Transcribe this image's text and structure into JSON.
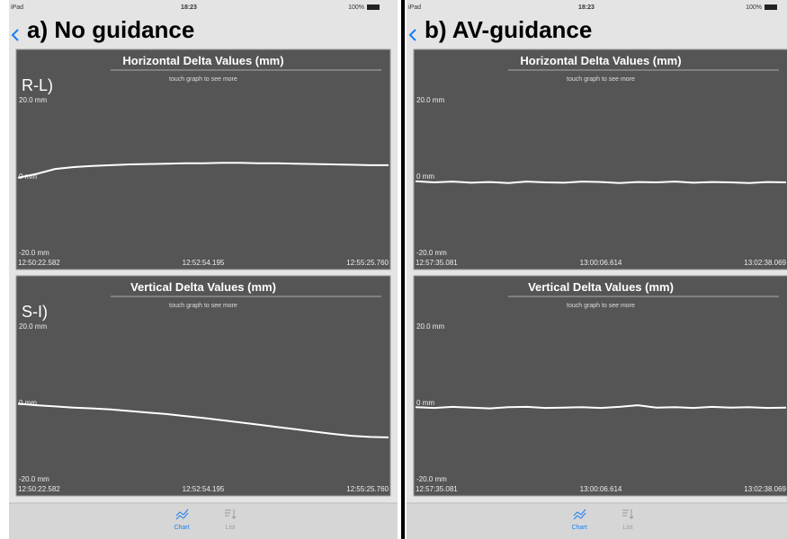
{
  "screens": [
    {
      "status": {
        "device": "iPad",
        "time": "18:23",
        "battery": "100%"
      },
      "heading": "a) No guidance",
      "tabs": [
        "Chart",
        "List"
      ]
    },
    {
      "status": {
        "device": "iPad",
        "time": "18:23",
        "battery": "100%"
      },
      "heading": "b) AV-guidance",
      "tabs": [
        "Chart",
        "List"
      ]
    }
  ],
  "chart_data": [
    {
      "type": "line",
      "title": "Horizontal Delta Values (mm)",
      "subtitle": "touch graph to see more",
      "annotation": "R-L)",
      "categories": [
        "12:50:22.582",
        null,
        null,
        null,
        null,
        null,
        null,
        null,
        null,
        null,
        "12:52:54.195",
        null,
        null,
        null,
        null,
        null,
        null,
        null,
        null,
        null,
        "12:55:25.760"
      ],
      "series": [
        {
          "color": "#ffffff",
          "values": [
            0.5,
            1.5,
            2.8,
            3.3,
            3.6,
            3.8,
            4.0,
            4.1,
            4.2,
            4.3,
            4.3,
            4.4,
            4.4,
            4.3,
            4.3,
            4.2,
            4.1,
            4.0,
            3.9,
            3.8,
            3.8
          ]
        }
      ],
      "ylim": [
        -20,
        20
      ],
      "yticks": [
        {
          "value": 20,
          "label": "20.0 mm"
        },
        {
          "value": 0,
          "label": "0 mm"
        },
        {
          "value": -20,
          "label": "-20.0 mm"
        }
      ]
    },
    {
      "type": "line",
      "title": "Vertical Delta Values (mm)",
      "subtitle": "touch graph to see more",
      "annotation": "S-I)",
      "categories": [
        "12:50:22.582",
        null,
        null,
        null,
        null,
        null,
        null,
        null,
        null,
        null,
        "12:52:54.195",
        null,
        null,
        null,
        null,
        null,
        null,
        null,
        null,
        null,
        "12:55:25.760"
      ],
      "series": [
        {
          "color": "#ffffff",
          "values": [
            0.6,
            0.2,
            -0.1,
            -0.4,
            -0.6,
            -0.9,
            -1.3,
            -1.7,
            -2.1,
            -2.6,
            -3.1,
            -3.7,
            -4.3,
            -4.9,
            -5.5,
            -6.1,
            -6.7,
            -7.3,
            -7.8,
            -8.1,
            -8.2
          ]
        }
      ],
      "ylim": [
        -20,
        20
      ],
      "yticks": [
        {
          "value": 20,
          "label": "20.0 mm"
        },
        {
          "value": 0,
          "label": "0 mm"
        },
        {
          "value": -20,
          "label": "-20.0 mm"
        }
      ]
    },
    {
      "type": "line",
      "title": "Horizontal Delta Values (mm)",
      "subtitle": "touch graph to see more",
      "categories": [
        "12:57:35.081",
        null,
        null,
        null,
        null,
        null,
        null,
        null,
        null,
        null,
        "13:00:06.614",
        null,
        null,
        null,
        null,
        null,
        null,
        null,
        null,
        null,
        "13:02:38.069"
      ],
      "series": [
        {
          "color": "#ffffff",
          "values": [
            -0.4,
            -0.7,
            -0.5,
            -0.8,
            -0.6,
            -0.9,
            -0.5,
            -0.7,
            -0.8,
            -0.5,
            -0.6,
            -0.9,
            -0.6,
            -0.7,
            -0.5,
            -0.8,
            -0.6,
            -0.7,
            -0.9,
            -0.6,
            -0.7
          ]
        }
      ],
      "ylim": [
        -20,
        20
      ],
      "yticks": [
        {
          "value": 20,
          "label": "20.0 mm"
        },
        {
          "value": 0,
          "label": "0 mm"
        },
        {
          "value": -20,
          "label": "-20.0 mm"
        }
      ]
    },
    {
      "type": "line",
      "title": "Vertical Delta Values (mm)",
      "subtitle": "touch graph to see more",
      "categories": [
        "12:57:35.081",
        null,
        null,
        null,
        null,
        null,
        null,
        null,
        null,
        null,
        "13:00:06.614",
        null,
        null,
        null,
        null,
        null,
        null,
        null,
        null,
        null,
        "13:02:38.069"
      ],
      "series": [
        {
          "color": "#ffffff",
          "values": [
            -0.3,
            -0.5,
            -0.2,
            -0.4,
            -0.6,
            -0.3,
            -0.2,
            -0.5,
            -0.4,
            -0.3,
            -0.5,
            -0.2,
            0.2,
            -0.4,
            -0.3,
            -0.5,
            -0.2,
            -0.4,
            -0.3,
            -0.5,
            -0.4
          ]
        }
      ],
      "ylim": [
        -20,
        20
      ],
      "yticks": [
        {
          "value": 20,
          "label": "20.0 mm"
        },
        {
          "value": 0,
          "label": "0 mm"
        },
        {
          "value": -20,
          "label": "-20.0 mm"
        }
      ]
    }
  ]
}
